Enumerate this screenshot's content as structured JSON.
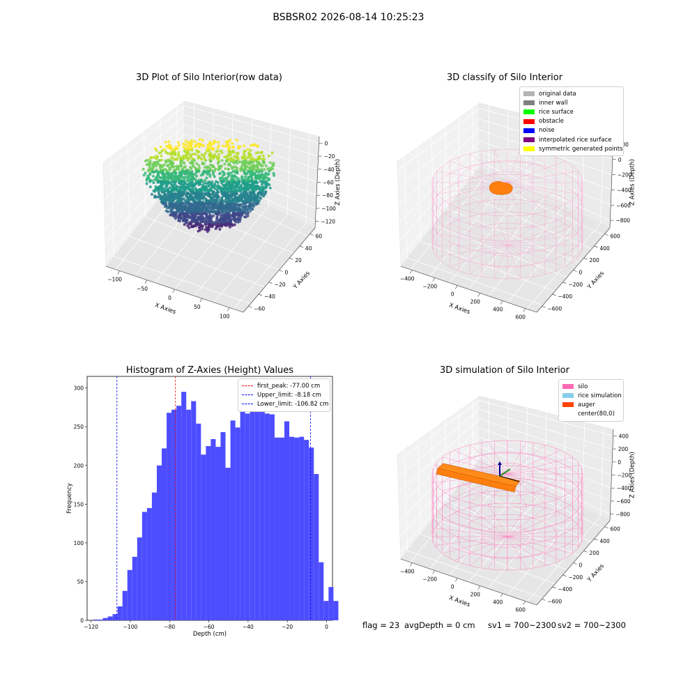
{
  "figure": {
    "suptitle": "BSBSR02 2026-08-14 10:25:23"
  },
  "chart_data": [
    {
      "type": "scatter",
      "subtype": "3d-scatter",
      "title": "3D Plot of Silo Interior(row data)",
      "xlabel": "X Axies",
      "ylabel": "Y Axies",
      "zlabel": "Z Axies (Depth)",
      "x_ticks": [
        "-100",
        "-50",
        "0",
        "50",
        "100"
      ],
      "y_ticks": [
        "-60",
        "-40",
        "-20",
        "0",
        "20",
        "40",
        "60"
      ],
      "z_ticks": [
        "0",
        "-20",
        "-40",
        "-60",
        "-80",
        "-100",
        "-120"
      ],
      "xlim": [
        -110,
        110
      ],
      "ylim": [
        -65,
        65
      ],
      "zlim": [
        -125,
        5
      ],
      "colormap": "viridis"
    },
    {
      "type": "scatter",
      "subtype": "3d-classification",
      "title": "3D classify of Silo Interior",
      "xlabel": "X Axies",
      "ylabel": "Y Axies",
      "zlabel": "Z Axies (Depth)",
      "x_ticks": [
        "-400",
        "-200",
        "0",
        "200",
        "400",
        "600"
      ],
      "y_ticks": [
        "-600",
        "-400",
        "-200",
        "0",
        "200",
        "400",
        "600"
      ],
      "z_ticks": [
        "200",
        "0",
        "-200",
        "-400",
        "-600",
        "-800"
      ],
      "legend": [
        {
          "label": "original data",
          "color": "#b3b3b3"
        },
        {
          "label": "inner wall",
          "color": "#808080"
        },
        {
          "label": "rice surface",
          "color": "#00ff00"
        },
        {
          "label": "obstacle",
          "color": "#ff0000"
        },
        {
          "label": "noise",
          "color": "#0000ff"
        },
        {
          "label": "interpolated rice surface",
          "color": "#800080"
        },
        {
          "label": "symmetric generated points",
          "color": "#ffff00"
        }
      ],
      "wireframe_color": "#f7a8cf",
      "blob_color": "#ff7f0e"
    },
    {
      "type": "bar",
      "subtype": "histogram",
      "title": "Histogram of Z-Axies (Height) Values",
      "xlabel": "Depth (cm)",
      "ylabel": "Frequency",
      "bin_start": -119,
      "bin_width": 2.5,
      "values": [
        1,
        1,
        3,
        5,
        8,
        18,
        38,
        65,
        82,
        107,
        140,
        145,
        165,
        200,
        222,
        268,
        272,
        277,
        295,
        272,
        283,
        254,
        214,
        225,
        234,
        224,
        243,
        197,
        258,
        249,
        275,
        267,
        272,
        274,
        299,
        267,
        266,
        236,
        236,
        257,
        237,
        236,
        237,
        233,
        223,
        189,
        75,
        25,
        43,
        25
      ],
      "xlim": [
        -122,
        3
      ],
      "ylim": [
        0,
        315
      ],
      "x_ticks": [
        -120,
        -100,
        -80,
        -60,
        -40,
        -20,
        0
      ],
      "y_ticks": [
        0,
        50,
        100,
        150,
        200,
        250,
        300
      ],
      "bar_color": "#4d4dff",
      "vlines": [
        {
          "label": "first_peak: -77.00 cm",
          "x": -77.0,
          "color": "#ff0000"
        },
        {
          "label": "Upper_limit: -8.18 cm",
          "x": -8.18,
          "color": "#0000ff"
        },
        {
          "label": "Lower_limit: -106.82 cm",
          "x": -106.82,
          "color": "#0000ff"
        }
      ]
    },
    {
      "type": "scatter",
      "subtype": "3d-simulation",
      "title": "3D simulation of Silo Interior",
      "xlabel": "X Axies",
      "ylabel": "Y Axies",
      "zlabel": "Z Axies (Depth)",
      "x_ticks": [
        "-400",
        "-200",
        "0",
        "200",
        "400",
        "600"
      ],
      "y_ticks": [
        "-600",
        "-400",
        "-200",
        "0",
        "200",
        "400",
        "600"
      ],
      "z_ticks": [
        "400",
        "200",
        "0",
        "-200",
        "-400",
        "-600",
        "-800"
      ],
      "legend": [
        {
          "label": "silo",
          "color": "#ff69b4"
        },
        {
          "label": "rice simulation",
          "color": "#87ceeb"
        },
        {
          "label": "auger",
          "color": "#ff4500"
        },
        {
          "label": "center(80,0)",
          "color": ""
        }
      ],
      "wireframe_color": "#ff80c0"
    }
  ],
  "footer": {
    "flag": "flag = 23",
    "avg_depth": "avgDepth = 0 cm",
    "sv1": "sv1 = 700~2300",
    "sv2": "sv2 = 700~2300"
  }
}
